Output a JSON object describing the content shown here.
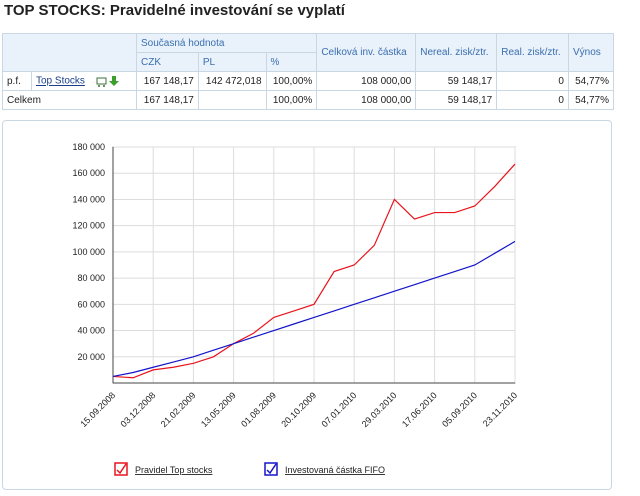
{
  "header": {
    "title": "TOP STOCKS: Pravidelné investování se vyplatí"
  },
  "table": {
    "group_header": "Současná hodnota",
    "sub_headers": [
      "CZK",
      "PL",
      "%"
    ],
    "headers": [
      "Celková inv. částka",
      "Nereal. zisk/ztr.",
      "Real. zisk/ztr.",
      "Výnos"
    ],
    "rows": [
      [
        "p.f.",
        "Top Stocks",
        "167 148,17",
        "142 472,018",
        "100,00%",
        "108 000,00",
        "59 148,17",
        "0",
        "54,77%"
      ],
      [
        "Celkem",
        "167 148,17",
        null,
        "100,00%",
        "108 000,00",
        "59 148,17",
        "0",
        "54,77%"
      ]
    ]
  },
  "chart_data": {
    "type": "line",
    "x": [
      "15.09.2008",
      null,
      "03.12.2008",
      null,
      "21.02.2009",
      null,
      "13.05.2009",
      null,
      "01.08.2009",
      null,
      "20.10.2009",
      null,
      "07.01.2010",
      null,
      "29.03.2010",
      null,
      "17.06.2010",
      null,
      "05.09.2010",
      null,
      "23.11.2010"
    ],
    "series": [
      {
        "name": "Pravidel Top stocks",
        "color": "#e8141c",
        "values": [
          5000,
          4000,
          10000,
          12000,
          15000,
          20000,
          30000,
          38000,
          50000,
          55000,
          60000,
          85000,
          90000,
          105000,
          140000,
          125000,
          130000,
          130000,
          135000,
          150000,
          167000
        ]
      },
      {
        "name": "Investovaná částka FIFO",
        "color": "#1414c8",
        "values": [
          5000,
          8000,
          12000,
          16000,
          20000,
          25000,
          30000,
          35000,
          40000,
          45000,
          50000,
          55000,
          60000,
          65000,
          70000,
          75000,
          80000,
          85000,
          90000,
          99000,
          108000
        ]
      }
    ],
    "ylim": [
      0,
      180000
    ],
    "yticks": [
      {
        "value": 20000,
        "label": "20 000"
      },
      {
        "value": 40000,
        "label": "40 000"
      },
      {
        "value": 60000,
        "label": "60 000"
      },
      {
        "value": 80000,
        "label": "80 000"
      },
      {
        "value": 100000,
        "label": "100 000"
      },
      {
        "value": 120000,
        "label": "120 000"
      },
      {
        "value": 140000,
        "label": "140 000"
      },
      {
        "value": 160000,
        "label": "160 000"
      },
      {
        "value": 180000,
        "label": "180 000"
      }
    ],
    "grid": true
  }
}
